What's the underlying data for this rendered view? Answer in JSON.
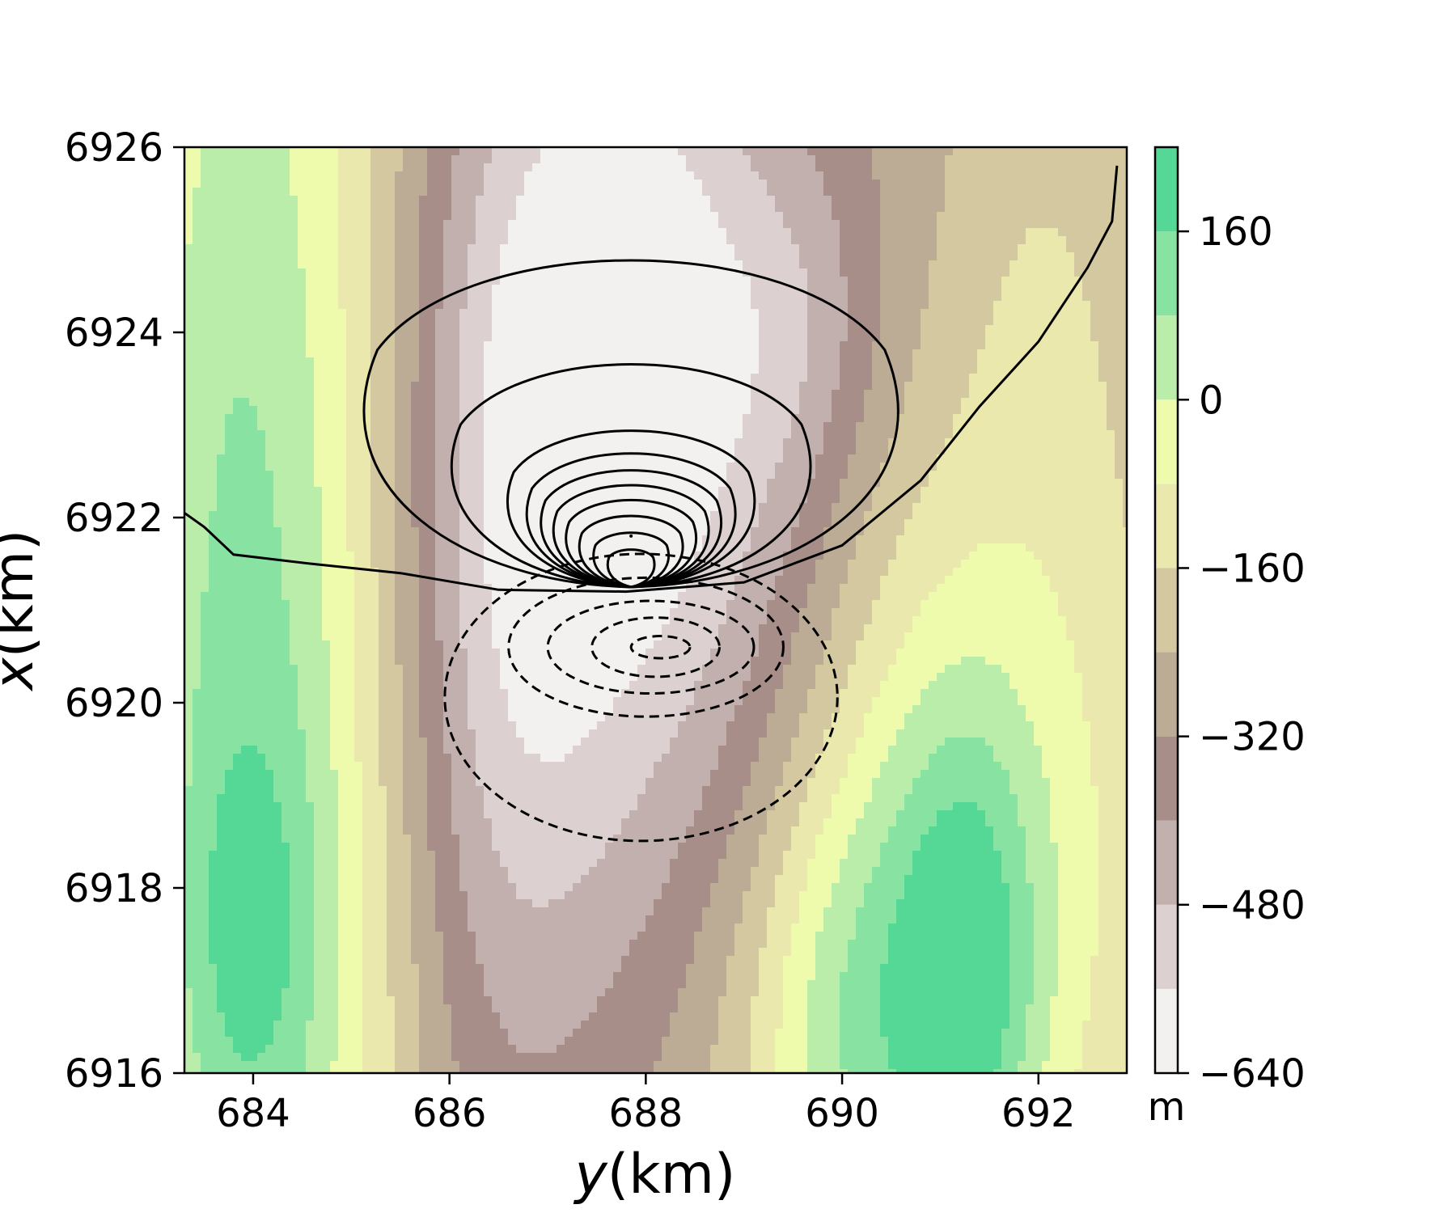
{
  "chart_data": {
    "type": "contour",
    "xlabel_italic": "y",
    "xlabel_rest": "(km)",
    "ylabel_italic": "x",
    "ylabel_rest": "(km)",
    "xlim": [
      683.3,
      692.9
    ],
    "ylim": [
      6916,
      6926
    ],
    "x_ticks": [
      "684",
      "686",
      "688",
      "690",
      "692"
    ],
    "y_ticks": [
      "6916",
      "6918",
      "6920",
      "6922",
      "6924",
      "6926"
    ],
    "colorbar": {
      "unit": "m",
      "range": [
        -640,
        240
      ],
      "levels": [
        -640,
        -560,
        -480,
        -400,
        -320,
        -240,
        -160,
        -80,
        0,
        80,
        160,
        240
      ],
      "colors": [
        "#f2f1f0",
        "#dcd1d0",
        "#c1b0ad",
        "#a78e89",
        "#bcab95",
        "#d4c8a1",
        "#ebe8ae",
        "#eefbad",
        "#bbedaa",
        "#88e3a2",
        "#55d896"
      ],
      "tick_labels": [
        "160",
        "0",
        "−160",
        "−320",
        "−480",
        "−640"
      ]
    },
    "background_field": {
      "base": -240,
      "ridges": [
        {
          "y": 687.8,
          "x": 6923.0,
          "sy": 1.6,
          "sx": 4.2,
          "amp": -340
        },
        {
          "y": 687.8,
          "x": 6924.2,
          "sy": 0.8,
          "sx": 1.8,
          "amp": -120
        },
        {
          "y": 686.6,
          "x": 6920.0,
          "sy": 0.8,
          "sx": 4.5,
          "amp": -130
        },
        {
          "y": 689.6,
          "x": 6924.0,
          "sy": 0.6,
          "sx": 1.3,
          "amp": -90
        },
        {
          "y": 683.9,
          "x": 6920.0,
          "sy": 0.9,
          "sx": 8.0,
          "amp": 360
        },
        {
          "y": 684.0,
          "x": 6917.5,
          "sy": 0.5,
          "sx": 1.5,
          "amp": 120
        },
        {
          "y": 690.2,
          "x": 6916.5,
          "sy": 0.9,
          "sx": 2.2,
          "amp": 330
        },
        {
          "y": 691.3,
          "x": 6917.0,
          "sy": 0.5,
          "sx": 2.0,
          "amp": 240
        },
        {
          "y": 692.1,
          "x": 6918.5,
          "sy": 0.9,
          "sx": 3.5,
          "amp": 170
        },
        {
          "y": 690.6,
          "x": 6920.5,
          "sy": 0.8,
          "sx": 2.5,
          "amp": 120
        },
        {
          "y": 692.0,
          "x": 6924.5,
          "sy": 0.6,
          "sx": 2.0,
          "amp": 60
        },
        {
          "y": 685.2,
          "x": 6921.0,
          "sy": 0.6,
          "sx": 8.0,
          "amp": 80
        }
      ]
    },
    "positive_contours": {
      "center": [
        687.85,
        6921.8
      ],
      "base_point": [
        687.85,
        6921.25
      ],
      "radii": [
        0.28,
        0.45,
        0.62,
        0.78,
        0.93,
        1.08,
        1.25,
        1.48,
        2.15,
        3.2
      ],
      "style": "solid"
    },
    "zero_contour": [
      [
        683.3,
        6922.05
      ],
      [
        683.5,
        6921.9
      ],
      [
        683.8,
        6921.6
      ],
      [
        684.6,
        6921.5
      ],
      [
        685.5,
        6921.4
      ],
      [
        686.5,
        6921.22
      ],
      [
        687.8,
        6921.2
      ],
      [
        689.0,
        6921.3
      ],
      [
        690.0,
        6921.7
      ],
      [
        690.8,
        6922.4
      ],
      [
        691.4,
        6923.2
      ],
      [
        692.0,
        6923.9
      ],
      [
        692.5,
        6924.7
      ],
      [
        692.75,
        6925.2
      ],
      [
        692.8,
        6925.8
      ]
    ],
    "negative_contours": {
      "center": [
        688.15,
        6920.6
      ],
      "ellipses": [
        [
          0.3,
          0.12
        ],
        [
          0.65,
          0.32
        ],
        [
          1.05,
          0.5
        ],
        [
          1.4,
          0.75
        ],
        [
          2.0,
          1.55
        ]
      ],
      "style": "dashed"
    }
  }
}
